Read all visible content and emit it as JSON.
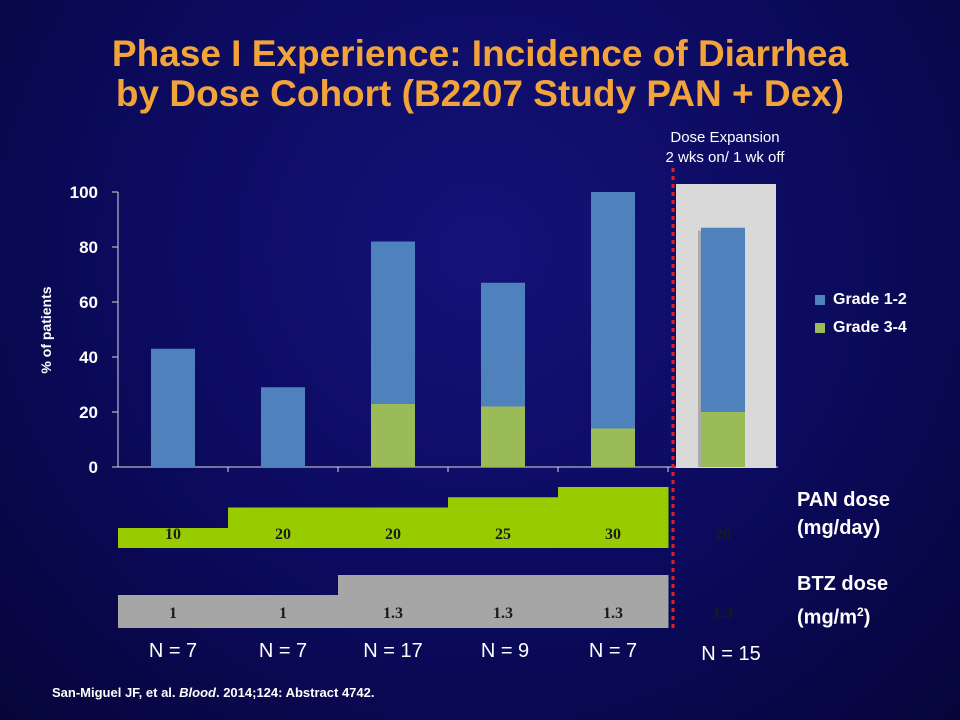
{
  "slide": {
    "title_line1": "Phase I Experience: Incidence of Diarrhea",
    "title_line2": "by Dose Cohort (B2207 Study PAN + Dex)",
    "expansion_line1": "Dose Expansion",
    "expansion_line2": "2 wks on/ 1 wk off",
    "pan_label_line1": "PAN dose",
    "pan_label_line2": "(mg/day)",
    "btz_label_line1": "BTZ dose",
    "btz_label_line2_pre": "(mg/m",
    "btz_label_sup": "2",
    "btz_label_post": ")",
    "citation_authors": "San-Miguel JF, et al. ",
    "citation_journal": "Blood",
    "citation_rest": ". 2014;124: Abstract 4742."
  },
  "colors": {
    "grade12": "#4f81bd",
    "grade34": "#9bbb59",
    "pan_band": "#99cc00",
    "btz_band": "#a6a6a6",
    "divider": "#e02020",
    "expansion_bg": "#d9d9d9",
    "title": "#f2a33a"
  },
  "chart_data": {
    "type": "bar",
    "stacked": true,
    "ylabel": "% of patients",
    "ylim": [
      0,
      100
    ],
    "yticks": [
      "0",
      "20",
      "40",
      "60",
      "80",
      "100"
    ],
    "cohorts": [
      {
        "pan": "10",
        "btz": "1",
        "n": "N = 7",
        "total": 43,
        "grade34": 0
      },
      {
        "pan": "20",
        "btz": "1",
        "n": "N = 7",
        "total": 29,
        "grade34": 0
      },
      {
        "pan": "20",
        "btz": "1.3",
        "n": "N = 17",
        "total": 82,
        "grade34": 23
      },
      {
        "pan": "25",
        "btz": "1.3",
        "n": "N = 9",
        "total": 67,
        "grade34": 22
      },
      {
        "pan": "30",
        "btz": "1.3",
        "n": "N = 7",
        "total": 100,
        "grade34": 14
      },
      {
        "pan": "20",
        "btz": "1.3",
        "n": "N = 15",
        "total": 87,
        "grade34": 20
      }
    ],
    "series": [
      {
        "name": "Grade 1-2"
      },
      {
        "name": "Grade 3-4"
      }
    ],
    "legend_position": "right"
  }
}
